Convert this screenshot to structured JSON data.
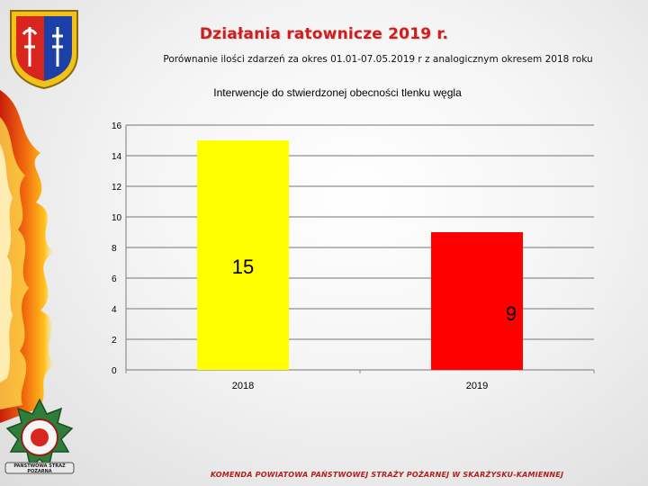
{
  "slide": {
    "title": "Działania ratownicze 2019 r.",
    "subtitle": "Porównanie ilości zdarzeń za okres 01.01-07.05.2019 r z analogicznym okresem 2018 roku",
    "footer": "KOMENDA POWIATOWA PAŃSTWOWEJ STRAŻY POŻARNEJ W SKARŻYSKU-KAMIENNEJ",
    "seal_text": "PAŃSTWOWA STRAŻ POŻARNA"
  },
  "chart_data": {
    "type": "bar",
    "title": "Interwencje do stwierdzonej obecności tlenku węgla",
    "categories": [
      "2018",
      "2019"
    ],
    "values": [
      15,
      9
    ],
    "colors": [
      "#ffff00",
      "#ff0000"
    ],
    "ylim": [
      0,
      16
    ],
    "yticks": [
      0,
      2,
      4,
      6,
      8,
      10,
      12,
      14,
      16
    ],
    "grid": true,
    "legend": "none",
    "data_labels": [
      "15",
      "9"
    ]
  }
}
